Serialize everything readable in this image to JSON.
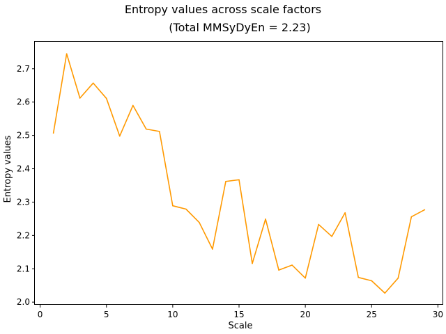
{
  "chart_data": {
    "type": "line",
    "title_line1": "Entropy values across scale factors",
    "title_line2": "(Total MMSyDyEn = 2.23)",
    "xlabel": "Scale",
    "ylabel": "Entropy values",
    "xlim": [
      -0.4,
      30.4
    ],
    "ylim": [
      1.992,
      2.781
    ],
    "grid": false,
    "legend": "none",
    "x_ticks": [
      0,
      5,
      10,
      15,
      20,
      25,
      30
    ],
    "y_ticks": [
      2.0,
      2.1,
      2.2,
      2.3,
      2.4,
      2.5,
      2.6,
      2.7
    ],
    "y_tick_labels": [
      "2.0",
      "2.1",
      "2.2",
      "2.3",
      "2.4",
      "2.5",
      "2.6",
      "2.7"
    ],
    "series": [
      {
        "color": "#ff9900",
        "x": [
          1,
          2,
          3,
          4,
          5,
          6,
          7,
          8,
          9,
          10,
          11,
          12,
          13,
          14,
          15,
          16,
          17,
          18,
          19,
          20,
          21,
          22,
          23,
          24,
          25,
          26,
          27,
          28,
          29
        ],
        "y": [
          2.507,
          2.745,
          2.612,
          2.657,
          2.611,
          2.498,
          2.59,
          2.519,
          2.512,
          2.289,
          2.279,
          2.239,
          2.159,
          2.362,
          2.367,
          2.116,
          2.249,
          2.096,
          2.111,
          2.072,
          2.233,
          2.197,
          2.268,
          2.074,
          2.064,
          2.027,
          2.072,
          2.256,
          2.277
        ]
      }
    ]
  }
}
